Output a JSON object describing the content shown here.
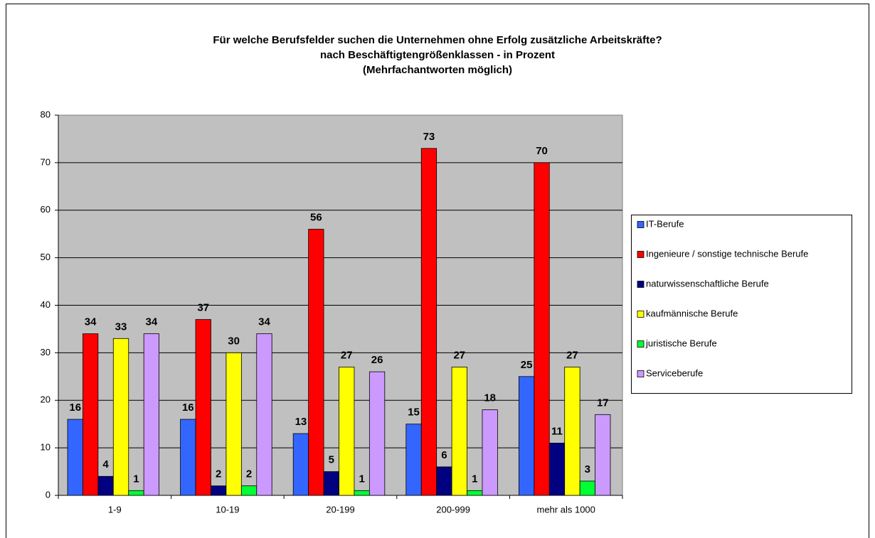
{
  "chart_data": {
    "type": "bar",
    "title": [
      "Für welche Berufsfelder suchen die Unternehmen ohne Erfolg zusätzliche Arbeitskräfte?",
      "nach Beschäftigtengrößenklassen - in Prozent",
      "(Mehrfachantworten möglich)"
    ],
    "categories": [
      "1-9",
      "10-19",
      "20-199",
      "200-999",
      "mehr als 1000"
    ],
    "series": [
      {
        "name": "IT-Berufe",
        "color": "#3366ff",
        "values": [
          16,
          16,
          13,
          15,
          25
        ]
      },
      {
        "name": "Ingenieure / sonstige technische Berufe",
        "color": "#ff0000",
        "values": [
          34,
          37,
          56,
          73,
          70
        ]
      },
      {
        "name": "naturwissenschaftliche Berufe",
        "color": "#000080",
        "values": [
          4,
          2,
          5,
          6,
          11
        ]
      },
      {
        "name": "kaufmännische Berufe",
        "color": "#ffff00",
        "values": [
          33,
          30,
          27,
          27,
          27
        ]
      },
      {
        "name": "juristische Berufe",
        "color": "#00ff33",
        "values": [
          1,
          2,
          1,
          1,
          3
        ]
      },
      {
        "name": "Serviceberufe",
        "color": "#cc99ff",
        "values": [
          34,
          34,
          26,
          18,
          17
        ]
      }
    ],
    "ylim": [
      0,
      80
    ],
    "yticks": [
      0,
      10,
      20,
      30,
      40,
      50,
      60,
      70,
      80
    ],
    "grid": true,
    "legend": "right"
  }
}
